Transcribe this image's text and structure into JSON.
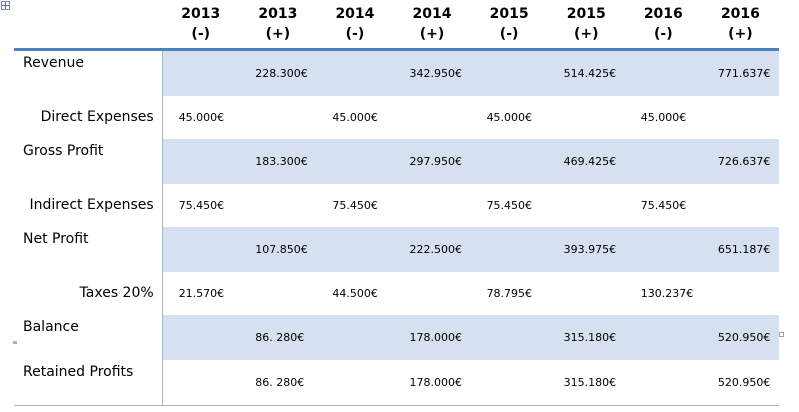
{
  "columns": [
    {
      "year": "2013",
      "sign": "(-)"
    },
    {
      "year": "2013",
      "sign": "(+)"
    },
    {
      "year": "2014",
      "sign": "(-)"
    },
    {
      "year": "2014",
      "sign": "(+)"
    },
    {
      "year": "2015",
      "sign": "(-)"
    },
    {
      "year": "2015",
      "sign": "(+)"
    },
    {
      "year": "2016",
      "sign": "(-)"
    },
    {
      "year": "2016",
      "sign": "(+)"
    }
  ],
  "rows": [
    {
      "label": "Revenue",
      "values": [
        "",
        "228.300€",
        "",
        "342.950€",
        "",
        "514.425€",
        "",
        "771.637€"
      ]
    },
    {
      "label": "Direct Expenses",
      "values": [
        "45.000€",
        "",
        "45.000€",
        "",
        "45.000€",
        "",
        "45.000€",
        ""
      ]
    },
    {
      "label": "Gross Profit",
      "values": [
        "",
        "183.300€",
        "",
        "297.950€",
        "",
        "469.425€",
        "",
        "726.637€"
      ]
    },
    {
      "label": "Indirect Expenses",
      "values": [
        "75.450€",
        "",
        "75.450€",
        "",
        "75.450€",
        "",
        "75.450€",
        ""
      ]
    },
    {
      "label": "Net Profit",
      "values": [
        "",
        "107.850€",
        "",
        "222.500€",
        "",
        "393.975€",
        "",
        "651.187€"
      ]
    },
    {
      "label": "Taxes 20%",
      "values": [
        "21.570€",
        "",
        "44.500€",
        "",
        "78.795€",
        "",
        "130.237€",
        ""
      ]
    },
    {
      "label": "Balance",
      "values": [
        "",
        "86. 280€",
        "",
        "178.000€",
        "",
        "315.180€",
        "",
        "520.950€"
      ]
    },
    {
      "label": "Retained Profits",
      "values": [
        "",
        "86. 280€",
        "",
        "178.000€",
        "",
        "315.180€",
        "",
        "520.950€"
      ]
    }
  ]
}
